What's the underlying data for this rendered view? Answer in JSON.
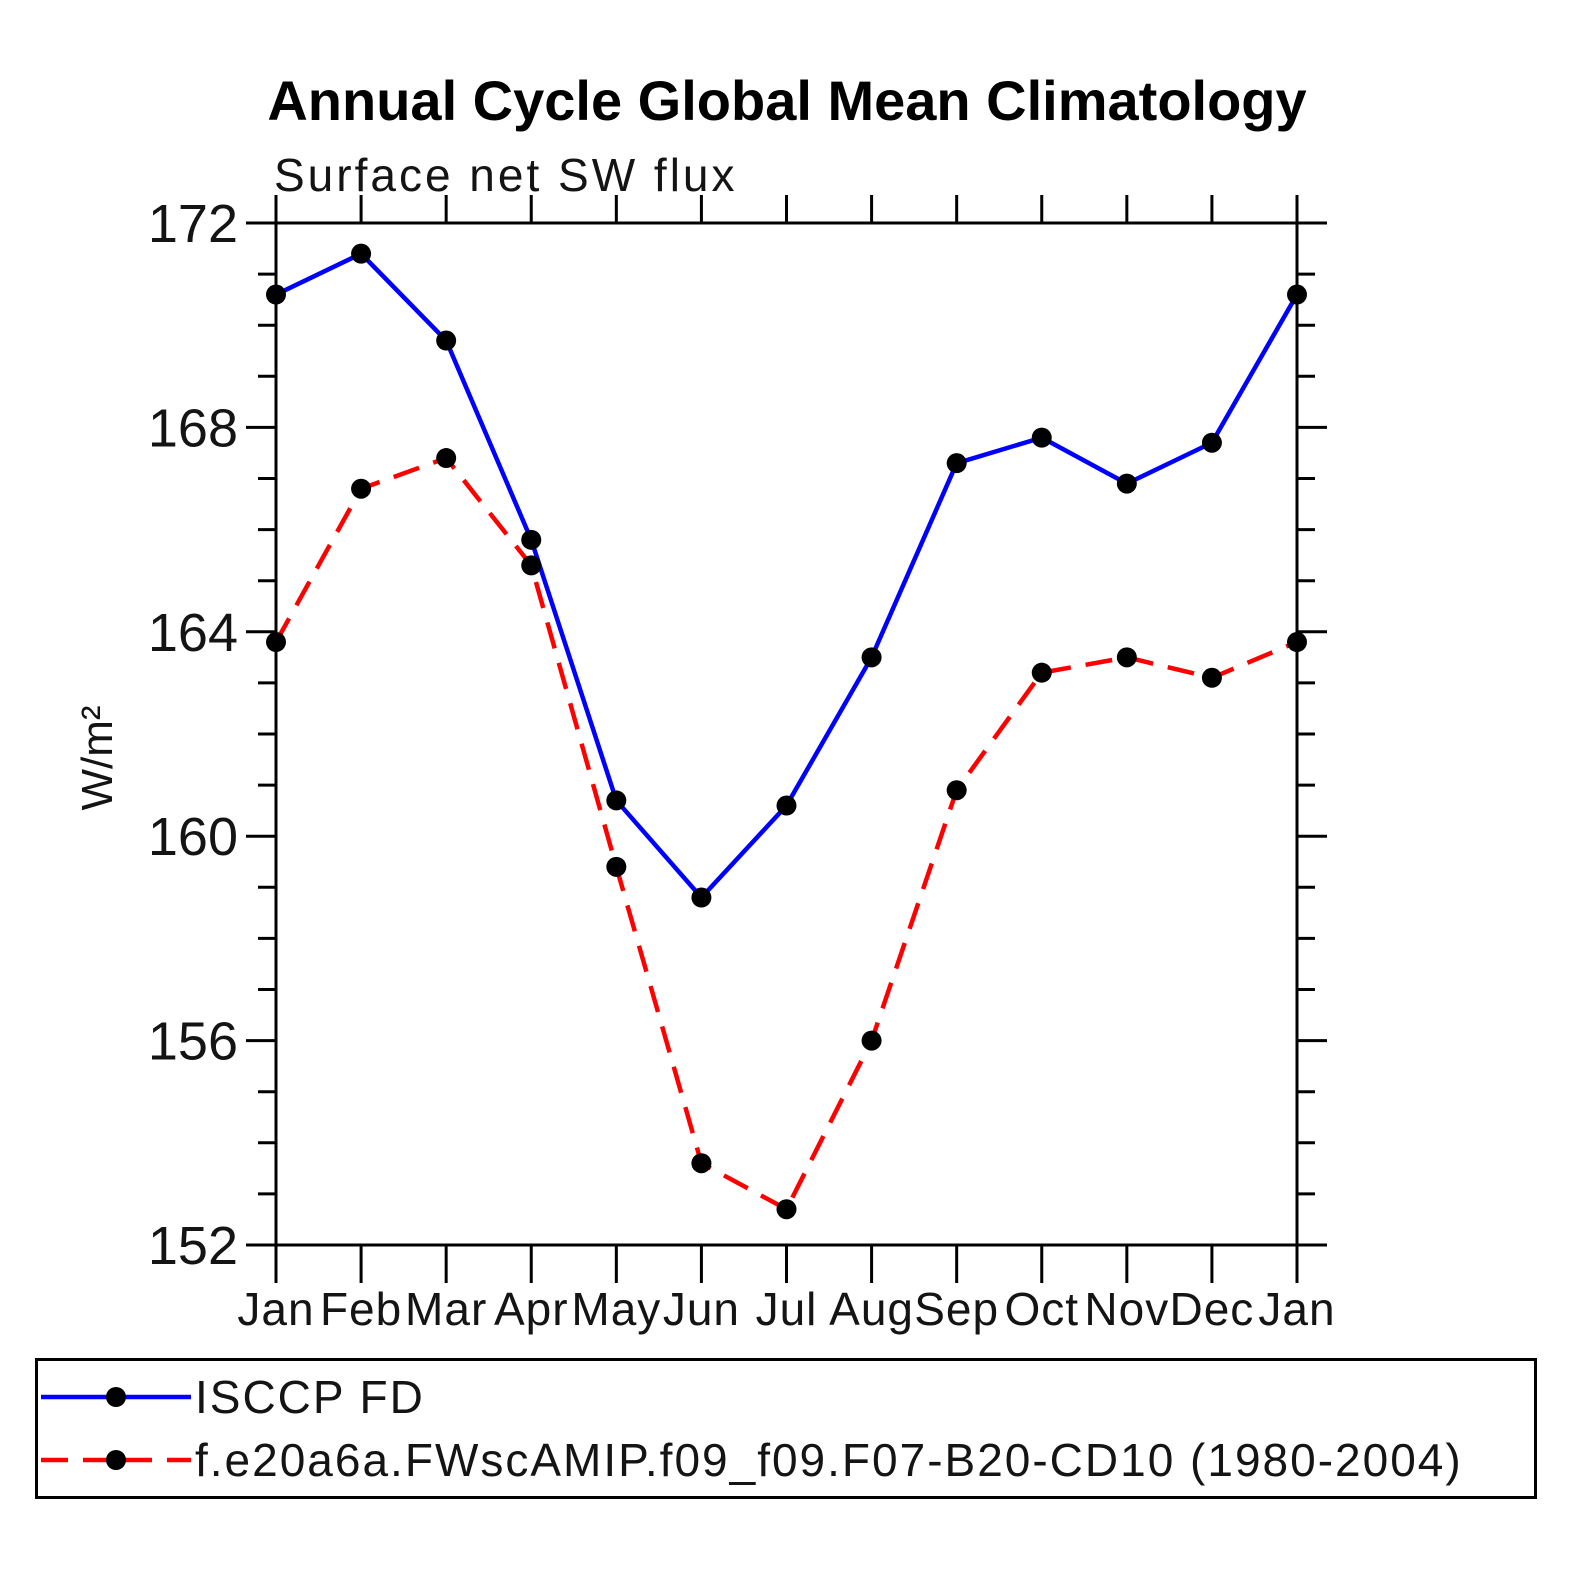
{
  "chart_data": {
    "type": "line",
    "title": "Annual Cycle Global Mean Climatology",
    "subtitle": "Surface net SW flux",
    "ylabel": "W/m²",
    "xlabel": "",
    "x_categories": [
      "Jan",
      "Feb",
      "Mar",
      "Apr",
      "May",
      "Jun",
      "Jul",
      "Aug",
      "Sep",
      "Oct",
      "Nov",
      "Dec",
      "Jan"
    ],
    "ylim": [
      152,
      172
    ],
    "ytick_major_labels": [
      152,
      156,
      160,
      164,
      168,
      172
    ],
    "ytick_minor_step": 1,
    "grid": false,
    "legend_position": "bottom-box",
    "series": [
      {
        "name": "ISCCP FD",
        "color": "#0000ff",
        "line_style": "solid",
        "marker": "circle",
        "marker_color": "#000000",
        "values": [
          170.6,
          171.4,
          169.7,
          165.8,
          160.7,
          158.8,
          160.6,
          163.5,
          167.3,
          167.8,
          166.9,
          167.7,
          170.6
        ]
      },
      {
        "name": "f.e20a6a.FWscAMIP.f09_f09.F07-B20-CD10 (1980-2004)",
        "color": "#ff0000",
        "line_style": "dashed",
        "marker": "circle",
        "marker_color": "#000000",
        "values": [
          163.8,
          166.8,
          167.4,
          165.3,
          159.4,
          153.6,
          152.7,
          156.0,
          160.9,
          163.2,
          163.5,
          163.1,
          163.8
        ]
      }
    ]
  }
}
